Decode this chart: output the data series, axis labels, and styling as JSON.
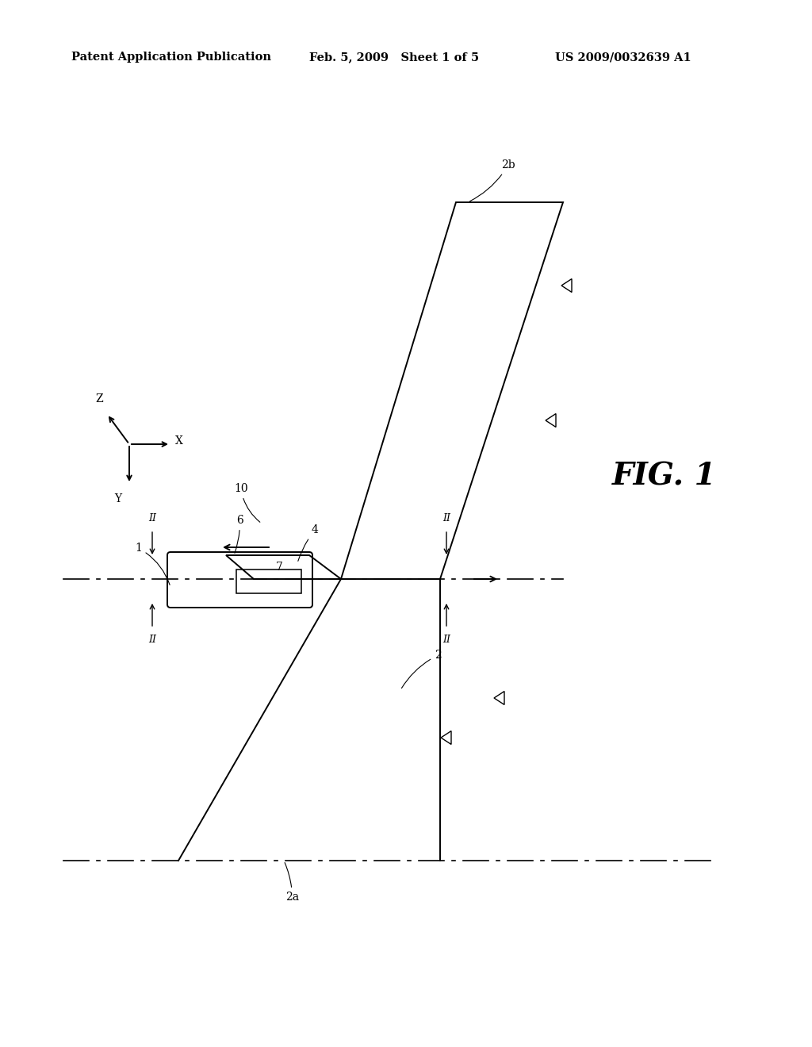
{
  "background_color": "#ffffff",
  "header_left": "Patent Application Publication",
  "header_mid": "Feb. 5, 2009   Sheet 1 of 5",
  "header_right": "US 2009/0032639 A1",
  "fig_label": "FIG. 1",
  "lw": 1.4,
  "label_fontsize": 10,
  "header_fontsize": 10.5,
  "fig_label_fontsize": 28
}
